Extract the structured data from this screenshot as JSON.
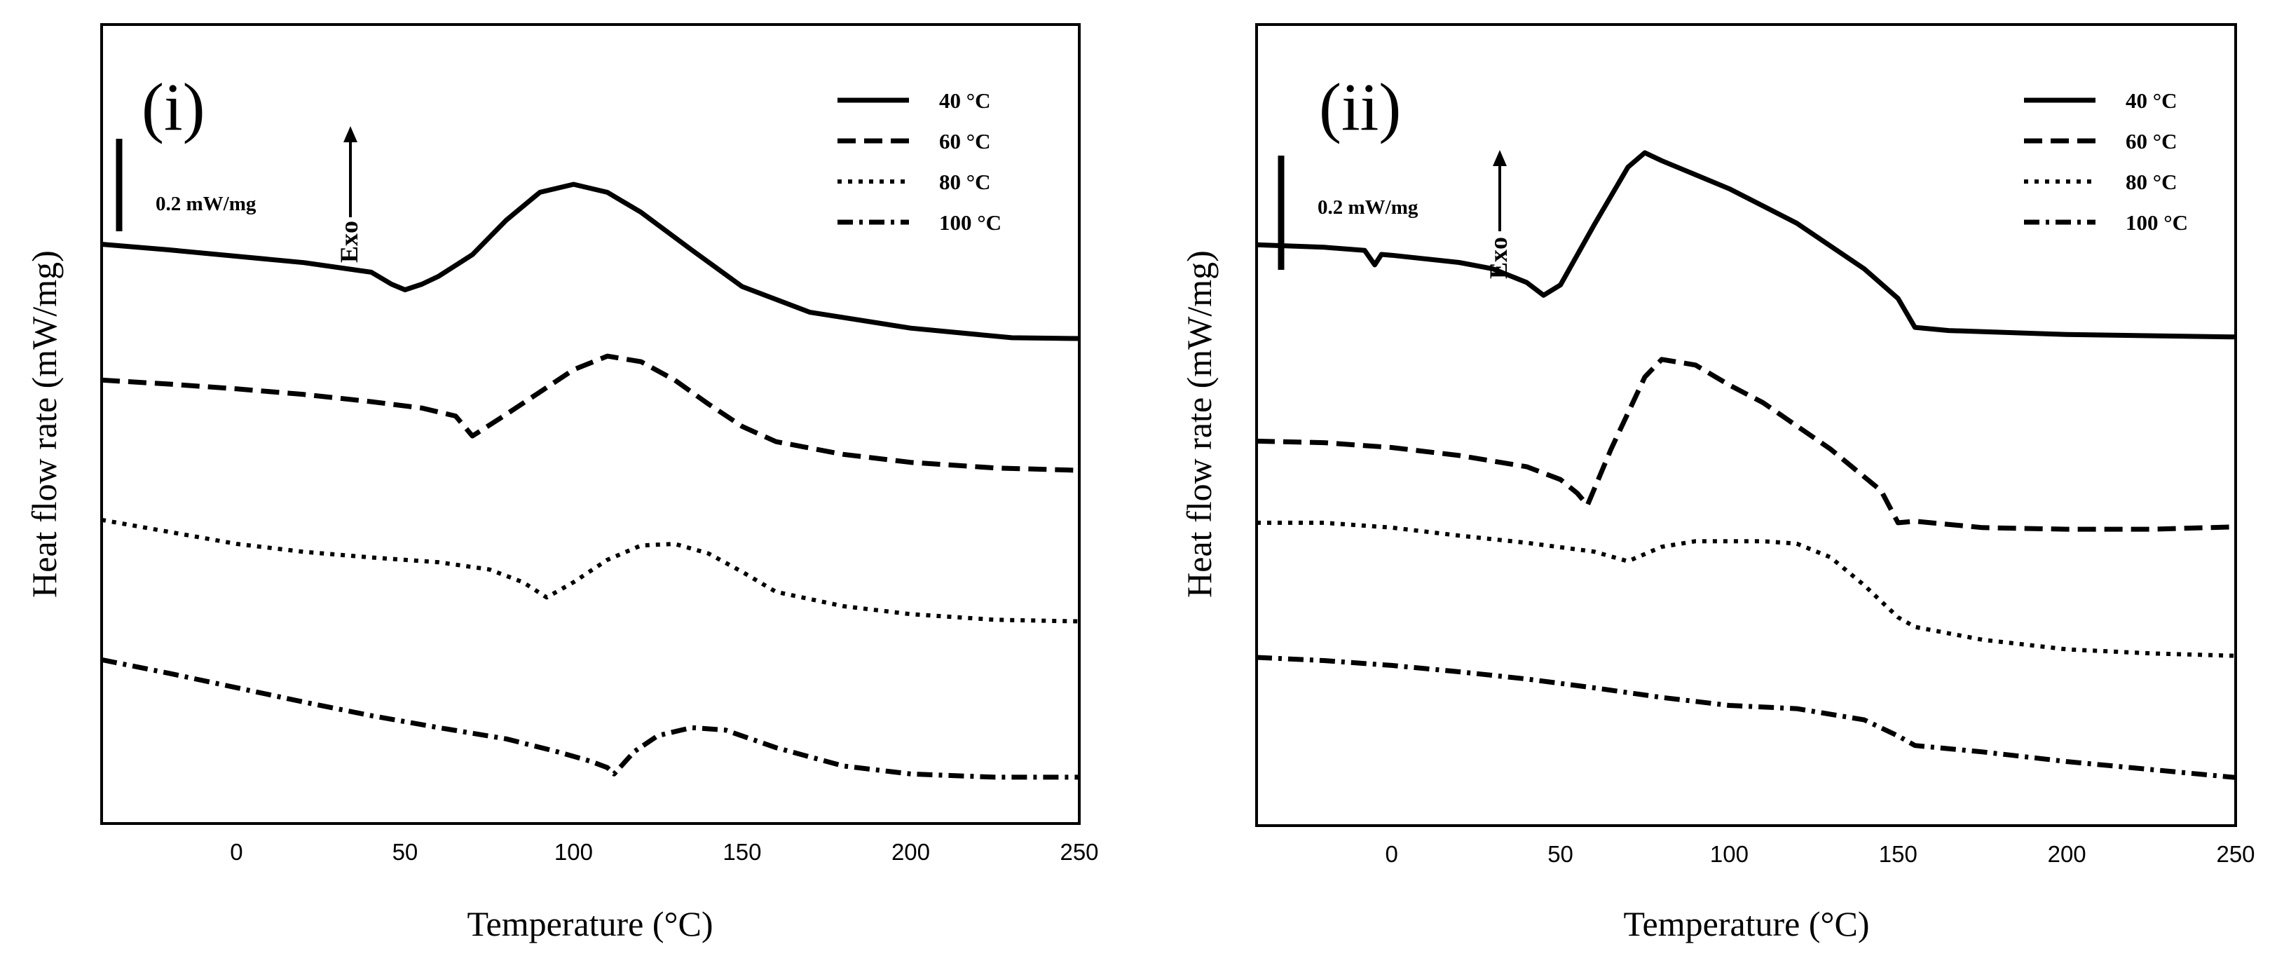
{
  "chart_data": [
    {
      "type": "line",
      "panel_label": "(i)",
      "xlabel": "Temperature (°C)",
      "ylabel": "Heat flow rate (mW/mg)",
      "xlim": [
        -40,
        250
      ],
      "xticks": [
        0,
        50,
        100,
        150,
        200,
        250
      ],
      "ylim": [
        0,
        1
      ],
      "scale_bar_label": "0.2 mW/mg",
      "exo_label": "Exo",
      "series": [
        {
          "name": "40 °C",
          "style": "solid",
          "x": [
            -40,
            -20,
            0,
            20,
            40,
            46,
            50,
            55,
            60,
            70,
            80,
            90,
            100,
            110,
            120,
            135,
            150,
            170,
            200,
            230,
            250
          ],
          "y": [
            0.725,
            0.718,
            0.71,
            0.702,
            0.69,
            0.675,
            0.668,
            0.675,
            0.685,
            0.712,
            0.755,
            0.79,
            0.8,
            0.79,
            0.765,
            0.718,
            0.672,
            0.64,
            0.62,
            0.608,
            0.607
          ]
        },
        {
          "name": "60 °C",
          "style": "dashed",
          "x": [
            -40,
            -20,
            0,
            20,
            40,
            55,
            65,
            70,
            80,
            90,
            100,
            110,
            120,
            130,
            140,
            150,
            160,
            180,
            200,
            225,
            250
          ],
          "y": [
            0.555,
            0.55,
            0.544,
            0.537,
            0.528,
            0.52,
            0.51,
            0.485,
            0.512,
            0.54,
            0.568,
            0.585,
            0.578,
            0.555,
            0.525,
            0.497,
            0.478,
            0.462,
            0.452,
            0.445,
            0.442
          ]
        },
        {
          "name": "80 °C",
          "style": "dotted",
          "x": [
            -40,
            -20,
            0,
            20,
            40,
            60,
            75,
            85,
            92,
            100,
            110,
            120,
            130,
            140,
            150,
            160,
            180,
            200,
            225,
            250
          ],
          "y": [
            0.38,
            0.365,
            0.35,
            0.34,
            0.333,
            0.327,
            0.318,
            0.302,
            0.283,
            0.302,
            0.33,
            0.348,
            0.35,
            0.338,
            0.315,
            0.29,
            0.272,
            0.262,
            0.255,
            0.253
          ]
        },
        {
          "name": "100 °C",
          "style": "dashdot",
          "x": [
            -40,
            -20,
            0,
            20,
            40,
            60,
            80,
            95,
            105,
            110,
            112,
            118,
            125,
            135,
            145,
            160,
            180,
            200,
            225,
            250
          ],
          "y": [
            0.205,
            0.188,
            0.17,
            0.152,
            0.135,
            0.12,
            0.106,
            0.09,
            0.078,
            0.07,
            0.062,
            0.09,
            0.11,
            0.12,
            0.117,
            0.095,
            0.072,
            0.062,
            0.058,
            0.058
          ]
        }
      ]
    },
    {
      "type": "line",
      "panel_label": "(ii)",
      "xlabel": "Temperature (°C)",
      "ylabel": "Heat flow rate (mW/mg)",
      "xlim": [
        -40,
        250
      ],
      "xticks": [
        0,
        50,
        100,
        150,
        200,
        250
      ],
      "ylim": [
        0,
        1
      ],
      "scale_bar_label": "0.2 mW/mg",
      "exo_label": "Exo",
      "series": [
        {
          "name": "40 °C",
          "style": "solid",
          "x": [
            -40,
            -20,
            -8,
            -5,
            -3,
            0,
            20,
            30,
            40,
            45,
            50,
            60,
            70,
            75,
            80,
            100,
            120,
            140,
            150,
            155,
            165,
            200,
            250
          ],
          "y": [
            0.725,
            0.722,
            0.718,
            0.7,
            0.713,
            0.712,
            0.703,
            0.695,
            0.678,
            0.662,
            0.675,
            0.75,
            0.822,
            0.84,
            0.83,
            0.795,
            0.752,
            0.695,
            0.658,
            0.622,
            0.618,
            0.613,
            0.61
          ]
        },
        {
          "name": "60 °C",
          "style": "dashed",
          "x": [
            -40,
            -20,
            0,
            20,
            40,
            50,
            55,
            58,
            65,
            75,
            80,
            90,
            100,
            110,
            130,
            145,
            150,
            155,
            175,
            200,
            225,
            250
          ],
          "y": [
            0.48,
            0.478,
            0.472,
            0.462,
            0.448,
            0.432,
            0.415,
            0.4,
            0.47,
            0.56,
            0.582,
            0.575,
            0.55,
            0.528,
            0.47,
            0.418,
            0.378,
            0.38,
            0.372,
            0.37,
            0.37,
            0.373
          ]
        },
        {
          "name": "80 °C",
          "style": "dotted",
          "x": [
            -40,
            -20,
            0,
            20,
            40,
            60,
            70,
            80,
            90,
            100,
            110,
            120,
            130,
            140,
            150,
            155,
            175,
            200,
            225,
            250
          ],
          "y": [
            0.378,
            0.378,
            0.372,
            0.362,
            0.353,
            0.342,
            0.33,
            0.348,
            0.355,
            0.355,
            0.355,
            0.352,
            0.335,
            0.3,
            0.26,
            0.248,
            0.232,
            0.22,
            0.215,
            0.212
          ]
        },
        {
          "name": "100 °C",
          "style": "dashdot",
          "x": [
            -40,
            -20,
            0,
            20,
            40,
            60,
            80,
            100,
            120,
            140,
            150,
            155,
            175,
            200,
            225,
            250
          ],
          "y": [
            0.21,
            0.206,
            0.2,
            0.192,
            0.183,
            0.172,
            0.16,
            0.15,
            0.146,
            0.132,
            0.112,
            0.1,
            0.092,
            0.08,
            0.07,
            0.06
          ]
        }
      ]
    }
  ]
}
